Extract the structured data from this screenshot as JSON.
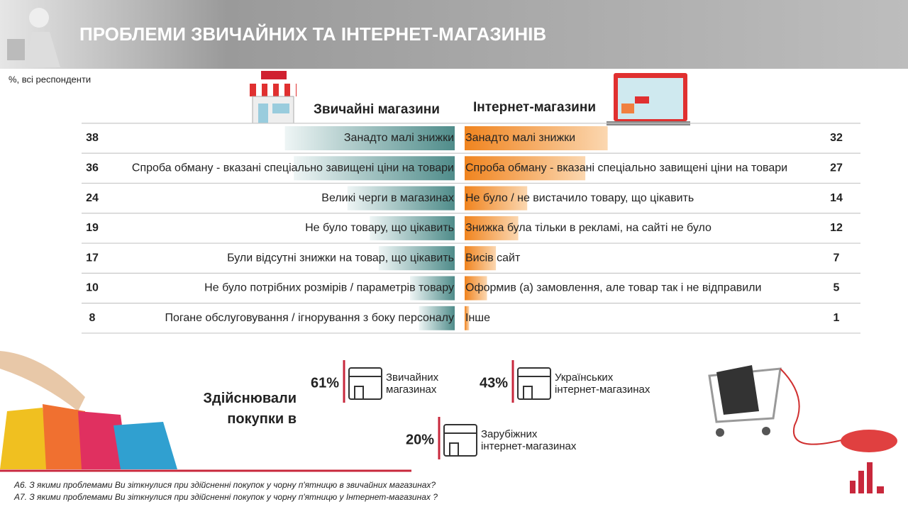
{
  "chart_data": {
    "type": "butterfly",
    "title": "ПРОБЛЕМИ ЗВИЧАЙНИХ ТА ІНТЕРНЕТ-МАГАЗИНІВ",
    "subtitle": "%, всі респонденти",
    "series": [
      {
        "name": "Звичайні магазини",
        "color": "#4f8c8a",
        "categories": [
          "Занадто малі знижки",
          "Спроба обману - вказані спеціально завищені ціни на товари",
          "Великі черги в магазинах",
          "Не було товару, що цікавить",
          "Були відсутні знижки на товар, що цікавить",
          "Не було потрібних розмірів / параметрів товару",
          "Погане обслуговування / ігнорування з боку персоналу"
        ],
        "values": [
          38,
          36,
          24,
          19,
          17,
          10,
          8
        ]
      },
      {
        "name": "Інтернет-магазини",
        "color": "#f0841f",
        "categories": [
          "Занадто малі знижки",
          "Спроба обману - вказані спеціально завищені ціни на товари",
          "Не було / не вистачило товару, що цікавить",
          "Знижка була тільки в рекламі, на сайті не було",
          "Висів сайт",
          "Оформив (а) замовлення, але товар так і не відправили",
          "Інше"
        ],
        "values": [
          32,
          27,
          14,
          12,
          7,
          5,
          1
        ]
      }
    ]
  },
  "purchases": {
    "title": "Здійснювали покупки в",
    "items": [
      {
        "value": "61%",
        "label": "Звичайних магазинах"
      },
      {
        "value": "43%",
        "label": "Українських інтернет-магазинах"
      },
      {
        "value": "20%",
        "label": "Зарубіжних інтернет-магазинах"
      }
    ]
  },
  "notes": [
    "А6. З якими проблемами Ви зіткнулися при здійсненні покупок у чорну п'ятницю в звичайних магазинах?",
    "А7. З якими проблемами Ви зіткнулися при здійсненні покупок у чорну п'ятницю у Інтернет-магазинах ?"
  ]
}
